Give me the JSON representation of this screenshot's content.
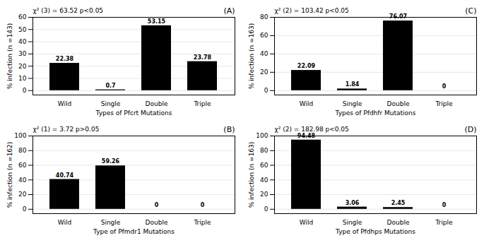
{
  "chart_data": [
    {
      "type": "bar",
      "title": "(A)",
      "annotations": [
        "χ² (3) = 63.52 p<0.05"
      ],
      "xlabel": "Types of Pfcrt Mutations",
      "ylabel": "% infection (n =143)",
      "categories": [
        "Wild",
        "Single",
        "Double",
        "Triple"
      ],
      "values": [
        22.38,
        0.7,
        53.15,
        23.78
      ],
      "ylim": [
        -3.6,
        60
      ],
      "yticks": [
        0,
        10,
        20,
        30,
        40,
        50,
        60
      ],
      "grid": true,
      "data_labels": true
    },
    {
      "type": "bar",
      "title": "(C)",
      "annotations": [
        "χ² (2) = 103.42 p<0.05"
      ],
      "xlabel": "Types of Pfdhfr Mutations",
      "ylabel": "% infection (n =163)",
      "categories": [
        "Wild",
        "Single",
        "Double",
        "Triple"
      ],
      "values": [
        22.09,
        1.84,
        76.07,
        0
      ],
      "ylim": [
        -4.8,
        80
      ],
      "yticks": [
        0,
        20,
        40,
        60,
        80
      ],
      "grid": true,
      "data_labels": true
    },
    {
      "type": "bar",
      "title": "(B)",
      "annotations": [
        "χ² (1) = 3.72 p>0.05"
      ],
      "xlabel": "Type of Pfmdr1 Mutations",
      "ylabel": "% infection (n =162)",
      "categories": [
        "Wild",
        "Single",
        "Double",
        "Triple"
      ],
      "values": [
        40.74,
        59.26,
        0,
        0
      ],
      "ylim": [
        -6,
        100
      ],
      "yticks": [
        0,
        20,
        40,
        60,
        80,
        100
      ],
      "grid": true,
      "data_labels": true
    },
    {
      "type": "bar",
      "title": "(D)",
      "annotations": [
        "χ² (2) = 182.98 p<0.05"
      ],
      "xlabel": "Type of Pfdhps Mutations",
      "ylabel": "% infection (n =163)",
      "categories": [
        "Wild",
        "Single",
        "Double",
        "Triple"
      ],
      "values": [
        94.48,
        3.06,
        2.45,
        0
      ],
      "ylim": [
        -6,
        100
      ],
      "yticks": [
        0,
        20,
        40,
        60,
        80,
        100
      ],
      "grid": true,
      "data_labels": true
    }
  ]
}
